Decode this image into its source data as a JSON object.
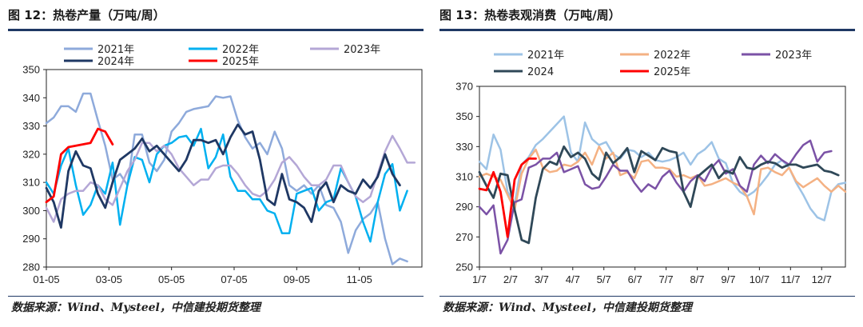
{
  "charts": [
    {
      "id": "left",
      "title": "图 12：热卷产量（万吨/周）",
      "source": "数据来源：Wind、Mysteel，中信建投期货整理",
      "chart_data": {
        "type": "line",
        "title": "图 12：热卷产量（万吨/周）",
        "xlabel": "",
        "ylabel": "",
        "ylim": [
          280,
          350
        ],
        "yticks": [
          280,
          290,
          300,
          310,
          320,
          330,
          340,
          350
        ],
        "xlim": [
          1,
          52
        ],
        "xtick_labels": [
          "01-05",
          "03-05",
          "05-05",
          "07-05",
          "09-05",
          "11-05"
        ],
        "xtick_weeks": [
          1,
          9.5,
          18,
          26.5,
          35,
          43.5
        ],
        "grid": false,
        "legend": "top",
        "series": [
          {
            "name": "2021年",
            "color": "#8eaadb",
            "width": 2.5,
            "values": [
              331,
              333,
              337,
              337,
              335,
              341.5,
              341.5,
              332,
              323,
              311,
              313,
              309,
              327,
              327,
              317,
              314,
              318,
              328,
              331,
              335,
              336,
              336.5,
              337,
              340.5,
              340,
              340.5,
              332,
              326,
              322,
              324,
              320,
              328,
              322,
              309,
              307,
              309,
              306,
              309,
              302,
              301,
              296,
              285,
              293,
              297,
              299,
              303,
              290,
              281,
              283,
              282
            ]
          },
          {
            "name": "2022年",
            "color": "#00b0f0",
            "width": 2.5,
            "values": [
              310,
              306,
              316,
              322,
              309,
              298.5,
              302,
              309,
              306,
              317,
              295,
              309,
              319,
              318,
              310,
              320,
              323,
              324,
              326,
              326.5,
              323,
              329,
              315,
              319,
              327,
              312,
              307,
              307,
              304,
              304,
              300,
              299,
              292,
              292,
              306,
              307,
              308,
              300,
              303,
              304,
              315,
              310,
              305,
              296,
              289,
              303,
              313,
              316.5,
              300,
              307
            ]
          },
          {
            "name": "2023年",
            "color": "#b4a7d6",
            "width": 2.5,
            "values": [
              301,
              296,
              304,
              306,
              307,
              307,
              310,
              309,
              304,
              302,
              308,
              314,
              318,
              324,
              324,
              321,
              323,
              320,
              315,
              312,
              309,
              311,
              311,
              315,
              316,
              316,
              313,
              309,
              306,
              305,
              307,
              311,
              317,
              319,
              316,
              312,
              309,
              309,
              311,
              316,
              316,
              310,
              305,
              303,
              305,
              313,
              321,
              326.5,
              322,
              317,
              317
            ]
          },
          {
            "name": "2024年",
            "color": "#1f3864",
            "width": 2.8,
            "values": [
              308,
              303,
              294,
              314,
              321,
              316,
              315,
              306,
              301,
              310,
              318,
              320,
              322,
              325.5,
              321,
              323,
              320,
              317,
              314,
              318,
              325,
              325,
              324,
              325,
              320,
              326,
              330.5,
              327,
              328,
              318,
              304,
              302,
              313,
              304,
              303,
              301,
              296,
              307,
              310,
              303,
              309,
              307,
              306,
              311,
              308,
              312,
              320,
              313,
              309
            ]
          },
          {
            "name": "2025年",
            "color": "#ff0000",
            "width": 2.8,
            "values": [
              303,
              305,
              320,
              322.5,
              323,
              323.5,
              324,
              329,
              328,
              323.5
            ]
          }
        ]
      },
      "legend_rows": [
        [
          "2021年",
          "2022年",
          "2023年"
        ],
        [
          "2024年",
          "2025年"
        ]
      ]
    },
    {
      "id": "right",
      "title": "图 13：热卷表观消费（万吨/周）",
      "source": "数据来源：Wind、Mysteel，中信建投期货整理",
      "chart_data": {
        "type": "line",
        "title": "图 13：热卷表观消费（万吨/周）",
        "xlabel": "",
        "ylabel": "",
        "ylim": [
          250,
          370
        ],
        "yticks": [
          250,
          270,
          290,
          310,
          330,
          350,
          370
        ],
        "xlim": [
          1,
          53
        ],
        "xtick_labels": [
          "1/7",
          "2/7",
          "3/7",
          "4/7",
          "5/7",
          "6/7",
          "7/7",
          "8/7",
          "9/7",
          "10/7",
          "11/7",
          "12/7"
        ],
        "xtick_weeks": [
          1,
          5.42,
          9.84,
          14.26,
          18.68,
          23.1,
          27.52,
          31.94,
          36.36,
          40.78,
          45.2,
          49.62
        ],
        "grid": false,
        "legend": "top",
        "series": [
          {
            "name": "2021年",
            "color": "#9dc3e6",
            "width": 2.5,
            "values": [
              320,
              315,
              338,
              328,
              300,
              292,
              318,
              323,
              331,
              335,
              340,
              345,
              350,
              326,
              320,
              346,
              335,
              331,
              333,
              325,
              322,
              328,
              327,
              323,
              326,
              321,
              320,
              321,
              323,
              326,
              318,
              325,
              328,
              333,
              322,
              319,
              306,
              300,
              297,
              300,
              305,
              311,
              318,
              321,
              316,
              306,
              298,
              289,
              283,
              281,
              300,
              305,
              306
            ]
          },
          {
            "name": "2022年",
            "color": "#f4b183",
            "width": 2.5,
            "values": [
              310,
              312,
              310,
              308,
              298,
              288,
              312,
              322,
              328,
              316,
              313,
              314,
              318,
              317,
              320,
              326,
              318,
              330,
              322,
              326,
              311,
              313,
              309,
              320,
              321,
              316,
              316,
              315,
              310,
              311,
              309,
              311,
              304,
              305,
              307,
              309,
              306,
              304,
              297,
              285,
              315,
              316,
              313,
              311,
              316,
              307,
              303,
              306,
              309,
              304,
              300,
              304,
              300
            ]
          },
          {
            "name": "2023年",
            "color": "#7b52a6",
            "width": 2.5,
            "values": [
              290,
              285,
              291,
              259,
              268,
              293,
              295,
              316,
              318,
              322,
              322,
              326,
              313,
              315,
              317,
              305,
              302,
              303,
              310,
              318,
              314,
              314,
              306,
              300,
              305,
              302,
              310,
              314,
              306,
              300,
              307,
              311,
              307,
              316,
              321,
              312,
              315,
              304,
              300,
              318,
              324,
              319,
              325,
              321,
              318,
              325,
              331,
              334,
              320,
              326,
              327
            ]
          },
          {
            "name": "2024",
            "color": "#2f4858",
            "width": 2.8,
            "values": [
              313,
              304,
              296,
              312,
              311,
              288,
              268,
              266,
              296,
              315,
              320,
              318,
              330,
              323,
              326,
              322,
              312,
              308,
              326,
              319,
              323,
              329,
              313,
              327,
              324,
              321,
              329,
              327,
              326,
              300,
              290,
              310,
              314,
              318,
              309,
              314,
              312,
              323,
              316,
              315,
              318,
              320,
              319,
              316,
              318,
              318,
              316,
              317,
              318,
              314,
              313,
              311
            ]
          },
          {
            "name": "2025年",
            "color": "#ff0000",
            "width": 2.8,
            "values": [
              302,
              301,
              313,
              300,
              270,
              308,
              318,
              322,
              322
            ]
          }
        ]
      },
      "legend_rows": [
        [
          "2021年",
          "2022年",
          "2023年"
        ],
        [
          "2024",
          "2025年"
        ]
      ]
    }
  ]
}
